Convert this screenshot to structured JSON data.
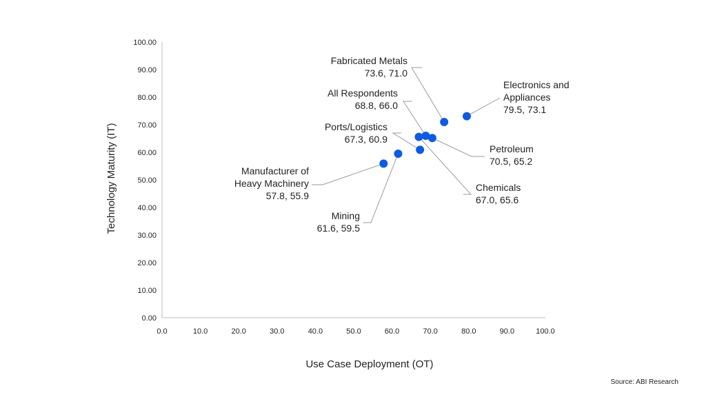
{
  "chart_data": {
    "type": "scatter",
    "title": "",
    "xlabel": "Use Case Deployment (OT)",
    "ylabel": "Technology Maturity (IT)",
    "xlim": [
      0,
      100
    ],
    "ylim": [
      0,
      100
    ],
    "x_ticks": [
      "0.0",
      "10.0",
      "20.0",
      "30.0",
      "40.0",
      "50.0",
      "60.0",
      "70.0",
      "80.0",
      "90.0",
      "100.0"
    ],
    "y_ticks": [
      "0.00",
      "10.00",
      "20.00",
      "30.00",
      "40.00",
      "50.00",
      "60.00",
      "70.00",
      "80.00",
      "90.00",
      "100.00"
    ],
    "grid": false,
    "point_color": "#0a5ce6",
    "points": [
      {
        "label": "Fabricated Metals",
        "value_label": "73.6, 71.0",
        "x": 73.6,
        "y": 71.0
      },
      {
        "label": "Electronics and Appliances",
        "value_label": "79.5, 73.1",
        "x": 79.5,
        "y": 73.1
      },
      {
        "label": "All Respondents",
        "value_label": "68.8, 66.0",
        "x": 68.8,
        "y": 66.0
      },
      {
        "label": "Ports/Logistics",
        "value_label": "67.3, 60.9",
        "x": 67.3,
        "y": 60.9
      },
      {
        "label": "Petroleum",
        "value_label": "70.5, 65.2",
        "x": 70.5,
        "y": 65.2
      },
      {
        "label": "Chemicals",
        "value_label": "67.0, 65.6",
        "x": 67.0,
        "y": 65.6
      },
      {
        "label": "Manufacturer of Heavy Machinery",
        "value_label": "57.8, 55.9",
        "x": 57.8,
        "y": 55.9
      },
      {
        "label": "Mining",
        "value_label": "61.6, 59.5",
        "x": 61.6,
        "y": 59.5
      }
    ]
  },
  "source": "Source: ABI Research"
}
